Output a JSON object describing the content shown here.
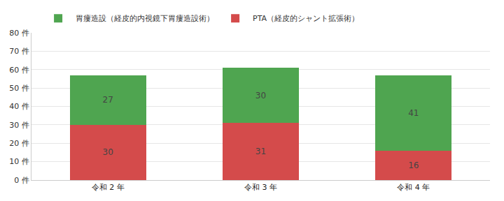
{
  "chart_data": {
    "type": "bar",
    "stacked": true,
    "data_labels": true,
    "grid": true,
    "legend": "top",
    "categories": [
      "令和 2 年",
      "令和 3 年",
      "令和 4 年"
    ],
    "series": [
      {
        "name": "PTA（経皮的シャント拡張術）",
        "color": "#d44b4b",
        "values": [
          30,
          31,
          16
        ]
      },
      {
        "name": "胃瘻造設（経皮的内視鏡下胃瘻造設術）",
        "color": "#4fa550",
        "values": [
          27,
          30,
          41
        ]
      }
    ],
    "ylim": [
      0,
      80
    ],
    "yticks": [
      {
        "value": 0,
        "label": "0 件"
      },
      {
        "value": 10,
        "label": "10 件"
      },
      {
        "value": 20,
        "label": "20 件"
      },
      {
        "value": 30,
        "label": "30 件"
      },
      {
        "value": 40,
        "label": "40 件"
      },
      {
        "value": 50,
        "label": "50 件"
      },
      {
        "value": 60,
        "label": "60 件"
      },
      {
        "value": 70,
        "label": "70 件"
      },
      {
        "value": 80,
        "label": "80 件"
      }
    ]
  }
}
